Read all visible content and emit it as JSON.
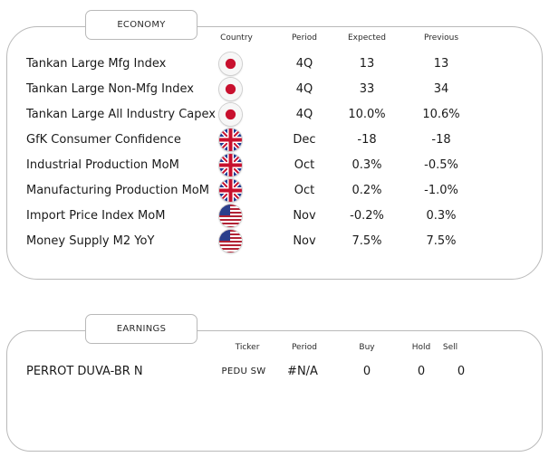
{
  "economy": {
    "tab_label": "ECONOMY",
    "headers": {
      "country": "Country",
      "period": "Period",
      "expected": "Expected",
      "previous": "Previous"
    },
    "rows": [
      {
        "name": "Tankan Large Mfg Index",
        "country": "japan-flag-icon",
        "period": "4Q",
        "expected": "13",
        "previous": "13"
      },
      {
        "name": "Tankan Large Non-Mfg Index",
        "country": "japan-flag-icon",
        "period": "4Q",
        "expected": "33",
        "previous": "34"
      },
      {
        "name": "Tankan Large All Industry Capex",
        "country": "japan-flag-icon",
        "period": "4Q",
        "expected": "10.0%",
        "previous": "10.6%"
      },
      {
        "name": "GfK Consumer Confidence",
        "country": "uk-flag-icon",
        "period": "Dec",
        "expected": "-18",
        "previous": "-18"
      },
      {
        "name": "Industrial Production MoM",
        "country": "uk-flag-icon",
        "period": "Oct",
        "expected": "0.3%",
        "previous": "-0.5%"
      },
      {
        "name": "Manufacturing Production MoM",
        "country": "uk-flag-icon",
        "period": "Oct",
        "expected": "0.2%",
        "previous": "-1.0%"
      },
      {
        "name": "Import Price Index MoM",
        "country": "us-flag-icon",
        "period": "Nov",
        "expected": "-0.2%",
        "previous": "0.3%"
      },
      {
        "name": "Money Supply M2 YoY",
        "country": "us-flag-icon",
        "period": "Nov",
        "expected": "7.5%",
        "previous": "7.5%"
      }
    ]
  },
  "earnings": {
    "tab_label": "EARNINGS",
    "headers": {
      "ticker": "Ticker",
      "period": "Period",
      "buy": "Buy",
      "hold": "Hold",
      "sell": "Sell"
    },
    "rows": [
      {
        "name": "PERROT DUVA-BR N",
        "ticker": "PEDU SW",
        "period": "#N/A",
        "buy": "0",
        "hold": "0",
        "sell": "0"
      }
    ]
  },
  "colors": {
    "border": "#b9b9b9",
    "text": "#1a1a1a",
    "japan_red": "#c8102e",
    "uk_blue": "#1f3a93",
    "uk_red": "#c8102e",
    "us_blue": "#2b3f8c",
    "us_red": "#b22234"
  }
}
